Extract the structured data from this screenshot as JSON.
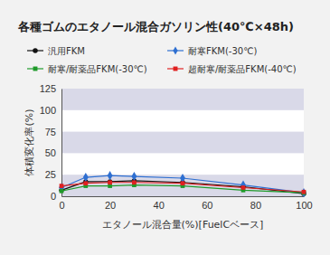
{
  "chart_data": {
    "type": "line",
    "title": "各種ゴムのエタノール混合ガソリン性(40℃×48h)",
    "x_label": "エタノール混合量(%)[FuelCベース]",
    "y_label": "体積変化率(%)",
    "x": [
      0,
      10,
      20,
      30,
      50,
      75,
      100
    ],
    "series": [
      {
        "name": "汎用FKM",
        "color": "#111111",
        "marker": "circle",
        "values": [
          7,
          17,
          17,
          18,
          16,
          11,
          3
        ]
      },
      {
        "name": "耐寒FKM(-30℃)",
        "color": "#2e6fd1",
        "marker": "diamond",
        "values": [
          10,
          22,
          24,
          23,
          21,
          13,
          4
        ]
      },
      {
        "name": "耐寒/耐薬品FKM(-30℃)",
        "color": "#1f9a2a",
        "marker": "square",
        "values": [
          6,
          12,
          12,
          13,
          12,
          7,
          4
        ]
      },
      {
        "name": "超耐寒/耐薬品FKM(-40℃)",
        "color": "#e02020",
        "marker": "square",
        "values": [
          12,
          15,
          16,
          16,
          15,
          10,
          5
        ]
      }
    ],
    "xlim": [
      0,
      100
    ],
    "xticks": [
      0,
      20,
      40,
      60,
      80,
      100
    ],
    "ylim": [
      0,
      125
    ],
    "yticks": [
      0,
      25,
      50,
      75,
      100,
      125
    ],
    "grid": true,
    "legend": "top"
  }
}
